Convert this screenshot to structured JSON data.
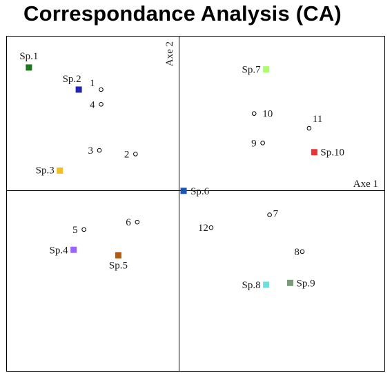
{
  "title": "Correspondance Analysis (CA)",
  "chart_data": {
    "type": "scatter",
    "title": "Correspondance Analysis (CA)",
    "xlabel": "Axe 1",
    "ylabel": "Axe 2",
    "xlim": [
      -1.0,
      1.2
    ],
    "ylim": [
      -1.05,
      0.77
    ],
    "grid": false,
    "legend": "none",
    "series": [
      {
        "name": "species",
        "marker": "square",
        "points": [
          {
            "label": "Sp.1",
            "x": -0.87,
            "y": 0.6,
            "color": "#1a7a1a"
          },
          {
            "label": "Sp.2",
            "x": -0.58,
            "y": 0.48,
            "color": "#2222bb"
          },
          {
            "label": "Sp.3",
            "x": -0.69,
            "y": 0.04,
            "color": "#f0c020"
          },
          {
            "label": "Sp.4",
            "x": -0.61,
            "y": -0.39,
            "color": "#9966ff"
          },
          {
            "label": "Sp.5",
            "x": -0.35,
            "y": -0.42,
            "color": "#b35a10"
          },
          {
            "label": "Sp.6",
            "x": 0.03,
            "y": -0.07,
            "color": "#1a55b5"
          },
          {
            "label": "Sp.7",
            "x": 0.51,
            "y": 0.59,
            "color": "#aaff66"
          },
          {
            "label": "Sp.8",
            "x": 0.51,
            "y": -0.58,
            "color": "#66e0e0"
          },
          {
            "label": "Sp.9",
            "x": 0.65,
            "y": -0.57,
            "color": "#7a9a7a"
          },
          {
            "label": "Sp.10",
            "x": 0.79,
            "y": 0.14,
            "color": "#ee3333"
          }
        ]
      },
      {
        "name": "sites",
        "marker": "circle",
        "points": [
          {
            "label": "1",
            "x": -0.45,
            "y": 0.48
          },
          {
            "label": "2",
            "x": -0.25,
            "y": 0.13
          },
          {
            "label": "3",
            "x": -0.46,
            "y": 0.15
          },
          {
            "label": "4",
            "x": -0.45,
            "y": 0.4
          },
          {
            "label": "5",
            "x": -0.55,
            "y": -0.28
          },
          {
            "label": "6",
            "x": -0.24,
            "y": -0.24
          },
          {
            "label": "7",
            "x": 0.53,
            "y": -0.2
          },
          {
            "label": "8",
            "x": 0.72,
            "y": -0.4
          },
          {
            "label": "9",
            "x": 0.49,
            "y": 0.19
          },
          {
            "label": "10",
            "x": 0.44,
            "y": 0.35
          },
          {
            "label": "11",
            "x": 0.76,
            "y": 0.27
          },
          {
            "label": "12",
            "x": 0.19,
            "y": -0.27
          }
        ]
      }
    ]
  }
}
